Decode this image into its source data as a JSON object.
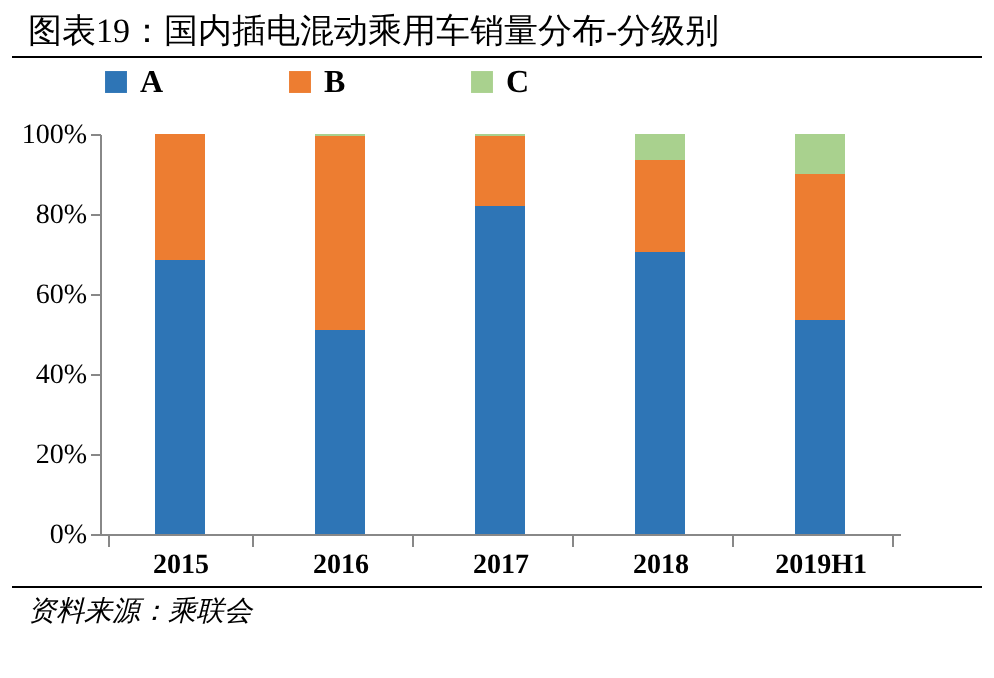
{
  "chart_data": {
    "type": "bar",
    "title": "图表19：国内插电混动乘用车销量分布-分级别",
    "stacked": true,
    "legend": "top",
    "categories": [
      "2015",
      "2016",
      "2017",
      "2018",
      "2019H1"
    ],
    "series": [
      {
        "name": "A",
        "color": "#2e75b6",
        "values": [
          68.5,
          51,
          82,
          70.5,
          53.5
        ]
      },
      {
        "name": "B",
        "color": "#ed7d31",
        "values": [
          31.5,
          48.5,
          17.5,
          23,
          36.5
        ]
      },
      {
        "name": "C",
        "color": "#a9d18e",
        "values": [
          0,
          0.5,
          0.5,
          6.5,
          10
        ]
      }
    ],
    "ylim": [
      0,
      100
    ],
    "yticks": [
      {
        "value": 0,
        "label": "0%"
      },
      {
        "value": 20,
        "label": "20%"
      },
      {
        "value": 40,
        "label": "40%"
      },
      {
        "value": 60,
        "label": "60%"
      },
      {
        "value": 80,
        "label": "80%"
      },
      {
        "value": 100,
        "label": "100%"
      }
    ],
    "grid": false,
    "annotations": [
      "资料来源：乘联会"
    ]
  }
}
